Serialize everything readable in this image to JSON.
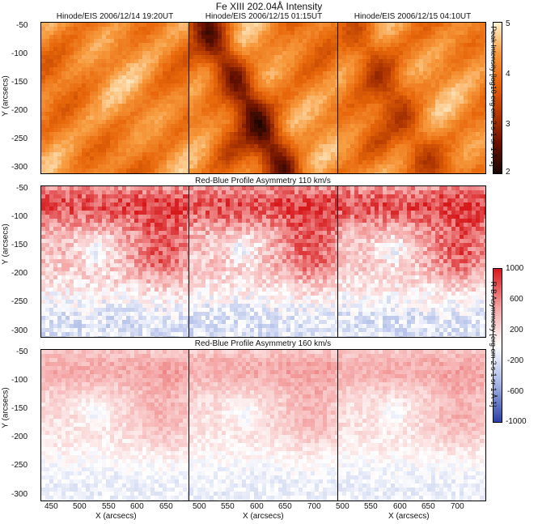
{
  "figure": {
    "title": "Fe XIII 202.04Å Intensity",
    "intensity_row": {
      "panel_titles": [
        "Hinode/EIS 2006/12/14 19:20UT",
        "Hinode/EIS 2006/12/15 01:15UT",
        "Hinode/EIS 2006/12/15 04:10UT"
      ],
      "colormap": [
        "#1a0500",
        "#6b1200",
        "#b53a00",
        "#e8670a",
        "#f79b3e",
        "#fff1d0"
      ],
      "colorbar_ticks": [
        "5",
        "4",
        "3",
        "2"
      ],
      "colorbar_label": "Peak Intensity [log10 erg cm-2 s-1 sr-1 Å-1]"
    },
    "asym110_row": {
      "title": "Red-Blue Profile Asymmetry 110 km/s"
    },
    "asym160_row": {
      "title": "Red-Blue Profile Asymmetry 160 km/s"
    },
    "asym_colorbar": {
      "ticks": [
        "1000",
        "600",
        "200",
        "-200",
        "-600",
        "-1000"
      ],
      "label": "R-B Asymmetry [erg cm-2 s-1 sr-1 Å-1]",
      "colors": [
        "#d7191c",
        "#f4a3a3",
        "#ffffff",
        "#a7b6e6",
        "#2b3fa6"
      ]
    },
    "y_axis": {
      "label": "Y (arcsecs)",
      "ticks": [
        "-50",
        "-100",
        "-150",
        "-200",
        "-250",
        "-300"
      ]
    },
    "x_axis": {
      "label": "X (arcsecs)",
      "ticks_panel1": [
        "450",
        "500",
        "550",
        "600",
        "650"
      ],
      "ticks_panel2": [
        "500",
        "550",
        "600",
        "650",
        "700"
      ],
      "ticks_panel3": [
        "500",
        "550",
        "600",
        "650",
        "700"
      ]
    }
  },
  "chart_data": {
    "type": "heatmap",
    "title": "Fe XIII 202.04Å Intensity",
    "rows": [
      "Fe XIII 202.04Å Intensity",
      "Red-Blue Profile Asymmetry 110 km/s",
      "Red-Blue Profile Asymmetry 160 km/s"
    ],
    "columns": [
      "Hinode/EIS 2006/12/14 19:20UT",
      "Hinode/EIS 2006/12/15 01:15UT",
      "Hinode/EIS 2006/12/15 04:10UT"
    ],
    "ylabel": "Y (arcsecs)",
    "xlabel": "X (arcsecs)",
    "ylim": [
      -310,
      -45
    ],
    "xlim_panels": [
      [
        438,
        685
      ],
      [
        485,
        732
      ],
      [
        495,
        745
      ]
    ],
    "intensity_colorbar": {
      "label": "Peak Intensity [log10 erg cm-2 s-1 sr-1 Å-1]",
      "range": [
        2,
        5
      ]
    },
    "asymmetry_colorbar": {
      "label": "R-B Asymmetry [erg cm-2 s-1 sr-1 Å-1]",
      "range": [
        -1000,
        1000
      ]
    }
  }
}
